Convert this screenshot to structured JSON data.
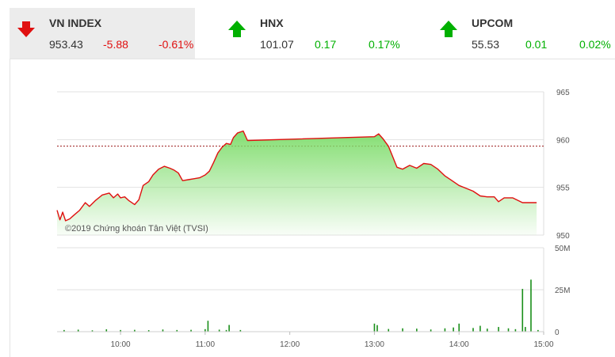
{
  "indices": [
    {
      "name": "VN INDEX",
      "value": "953.43",
      "change": "-5.88",
      "percent": "-0.61%",
      "direction": "down",
      "color": "#e01010",
      "active": true
    },
    {
      "name": "HNX",
      "value": "101.07",
      "change": "0.17",
      "percent": "0.17%",
      "direction": "up",
      "color": "#00b000",
      "active": false
    },
    {
      "name": "UPCOM",
      "value": "55.53",
      "change": "0.01",
      "percent": "0.02%",
      "direction": "up",
      "color": "#00b000",
      "active": false
    }
  ],
  "chart_data": {
    "type": "line",
    "watermark": "©2019 Chứng khoán Tân Việt (TVSI)",
    "x_ticks": [
      "10:00",
      "11:00",
      "12:00",
      "13:00",
      "14:00",
      "15:00"
    ],
    "price": {
      "y_ticks": [
        "965",
        "960",
        "955",
        "950"
      ],
      "ylim": [
        950,
        965
      ],
      "reference": 959.31,
      "line_color": "#e01010",
      "fill_color": "#7ddc6a",
      "series": [
        [
          "09:15",
          952.6
        ],
        [
          "09:17",
          951.6
        ],
        [
          "09:19",
          952.4
        ],
        [
          "09:21",
          951.5
        ],
        [
          "09:24",
          951.7
        ],
        [
          "09:27",
          952.1
        ],
        [
          "09:31",
          952.6
        ],
        [
          "09:35",
          953.4
        ],
        [
          "09:38",
          953.0
        ],
        [
          "09:42",
          953.6
        ],
        [
          "09:47",
          954.2
        ],
        [
          "09:52",
          954.4
        ],
        [
          "09:55",
          953.9
        ],
        [
          "09:58",
          954.3
        ],
        [
          "10:00",
          953.9
        ],
        [
          "10:03",
          954.0
        ],
        [
          "10:06",
          953.6
        ],
        [
          "10:10",
          953.2
        ],
        [
          "10:13",
          953.7
        ],
        [
          "10:16",
          955.2
        ],
        [
          "10:20",
          955.6
        ],
        [
          "10:23",
          956.3
        ],
        [
          "10:27",
          956.9
        ],
        [
          "10:31",
          957.2
        ],
        [
          "10:35",
          957.0
        ],
        [
          "10:38",
          956.8
        ],
        [
          "10:41",
          956.5
        ],
        [
          "10:44",
          955.7
        ],
        [
          "10:48",
          955.8
        ],
        [
          "10:52",
          955.9
        ],
        [
          "10:56",
          956.0
        ],
        [
          "11:00",
          956.3
        ],
        [
          "11:03",
          956.7
        ],
        [
          "11:06",
          957.6
        ],
        [
          "11:09",
          958.6
        ],
        [
          "11:12",
          959.2
        ],
        [
          "11:15",
          959.6
        ],
        [
          "11:18",
          959.5
        ],
        [
          "11:20",
          960.2
        ],
        [
          "11:23",
          960.7
        ],
        [
          "11:27",
          960.9
        ],
        [
          "11:30",
          959.9
        ],
        [
          "13:00",
          960.3
        ],
        [
          "13:03",
          960.6
        ],
        [
          "13:06",
          960.1
        ],
        [
          "13:10",
          959.3
        ],
        [
          "13:13",
          958.2
        ],
        [
          "13:16",
          957.1
        ],
        [
          "13:20",
          956.9
        ],
        [
          "13:25",
          957.3
        ],
        [
          "13:30",
          957.0
        ],
        [
          "13:35",
          957.5
        ],
        [
          "13:40",
          957.4
        ],
        [
          "13:45",
          956.9
        ],
        [
          "13:50",
          956.2
        ],
        [
          "13:55",
          955.7
        ],
        [
          "14:00",
          955.2
        ],
        [
          "14:05",
          954.9
        ],
        [
          "14:10",
          954.6
        ],
        [
          "14:15",
          954.1
        ],
        [
          "14:20",
          954.0
        ],
        [
          "14:25",
          954.0
        ],
        [
          "14:28",
          953.5
        ],
        [
          "14:32",
          953.9
        ],
        [
          "14:38",
          953.9
        ],
        [
          "14:45",
          953.4
        ],
        [
          "14:50",
          953.4
        ],
        [
          "14:55",
          953.4
        ]
      ]
    },
    "volume": {
      "y_ticks": [
        "50M",
        "25M",
        "0"
      ],
      "ylim": [
        0,
        50
      ],
      "unit": "M",
      "bar_color": "#1a8f1a",
      "bars": [
        [
          "09:20",
          1.0
        ],
        [
          "09:30",
          1.2
        ],
        [
          "09:40",
          0.8
        ],
        [
          "09:50",
          1.4
        ],
        [
          "10:00",
          1.0
        ],
        [
          "10:10",
          1.1
        ],
        [
          "10:20",
          0.9
        ],
        [
          "10:30",
          1.3
        ],
        [
          "10:40",
          1.0
        ],
        [
          "10:50",
          1.1
        ],
        [
          "11:00",
          1.5
        ],
        [
          "11:02",
          6.5
        ],
        [
          "11:10",
          1.2
        ],
        [
          "11:15",
          1.0
        ],
        [
          "11:17",
          4.0
        ],
        [
          "11:25",
          1.0
        ],
        [
          "13:00",
          4.8
        ],
        [
          "13:02",
          3.9
        ],
        [
          "13:10",
          1.6
        ],
        [
          "13:20",
          2.0
        ],
        [
          "13:30",
          1.8
        ],
        [
          "13:40",
          1.3
        ],
        [
          "13:50",
          2.0
        ],
        [
          "13:56",
          2.5
        ],
        [
          "14:00",
          4.8
        ],
        [
          "14:10",
          2.2
        ],
        [
          "14:15",
          3.5
        ],
        [
          "14:20",
          1.8
        ],
        [
          "14:28",
          2.8
        ],
        [
          "14:35",
          2.0
        ],
        [
          "14:40",
          1.5
        ],
        [
          "14:45",
          25.5
        ],
        [
          "14:47",
          2.8
        ],
        [
          "14:51",
          31.0
        ],
        [
          "14:56",
          1.0
        ]
      ]
    }
  }
}
